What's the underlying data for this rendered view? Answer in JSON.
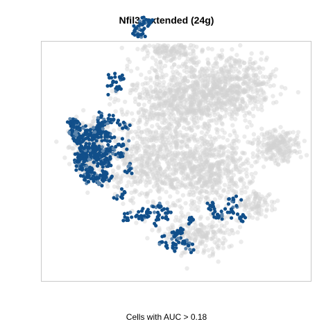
{
  "chart_data": {
    "type": "scatter",
    "title": "Nfil3_extended (24g)",
    "xlabel": "Cells with AUC > 0.18",
    "ylabel": "",
    "grid": false,
    "legend": "none",
    "colors": {
      "background_cells": "#d3d3d3",
      "high_auc_cells": "#114f8a",
      "mid_auc_cells": "#5d86ad"
    },
    "series": [
      {
        "name": "",
        "values": [
          [
            -2.95,
            1.44
          ],
          [
            -3.03,
            1.1
          ],
          [
            -2.41,
            0.35
          ],
          [
            -2.52,
            0.65
          ],
          [
            -3.05,
            1.42
          ],
          [
            -2.88,
            0.95
          ],
          [
            -2.71,
            0.41
          ],
          [
            -2.83,
            0.09
          ],
          [
            -2.57,
            -0.08
          ],
          [
            -2.38,
            -0.3
          ],
          [
            -2.6,
            -0.2
          ],
          [
            -2.45,
            1.05
          ],
          [
            -2.3,
            1.22
          ],
          [
            -2.26,
            0.55
          ],
          [
            -2.11,
            0.22
          ],
          [
            -2.14,
            -0.21
          ],
          [
            -2.02,
            0.6
          ],
          [
            -2.74,
            0.66
          ],
          [
            -2.9,
            0.31
          ],
          [
            -2.66,
            1.14
          ],
          [
            -2.19,
            1.43
          ],
          [
            -2.05,
            1.03
          ],
          [
            -1.86,
            1.56
          ],
          [
            -1.74,
            2.51
          ],
          [
            -1.68,
            2.89
          ],
          [
            -1.88,
            2.73
          ],
          [
            -2.22,
            1.67
          ],
          [
            -1.49,
            1.31
          ],
          [
            -1.58,
            0.78
          ],
          [
            -1.65,
            0.46
          ],
          [
            -1.4,
            -0.04
          ],
          [
            -1.59,
            -0.79
          ],
          [
            -1.45,
            -1.53
          ],
          [
            -1.04,
            -1.46
          ],
          [
            -0.87,
            -1.33
          ],
          [
            -0.55,
            -1.5
          ],
          [
            -0.27,
            -1.37
          ],
          [
            -0.53,
            -1.15
          ],
          [
            -0.42,
            -2.28
          ],
          [
            -0.1,
            -2.46
          ],
          [
            0.24,
            -2.26
          ],
          [
            -0.05,
            -2.11
          ],
          [
            0.36,
            -2.39
          ],
          [
            0.04,
            -1.93
          ],
          [
            1.06,
            -1.16
          ],
          [
            1.23,
            -1.42
          ],
          [
            1.64,
            -1.25
          ],
          [
            1.7,
            -0.95
          ],
          [
            1.93,
            -1.5
          ],
          [
            0.5,
            -1.58
          ],
          [
            -1.07,
            4.55
          ],
          [
            -0.89,
            4.68
          ],
          [
            -1.04,
            4.22
          ],
          [
            -1.24,
            4.33
          ],
          [
            -0.78,
            4.59
          ]
        ]
      }
    ]
  }
}
